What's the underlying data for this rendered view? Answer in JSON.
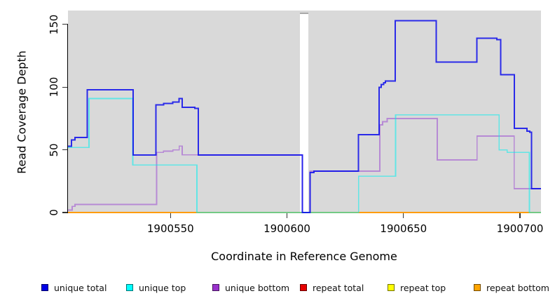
{
  "figure": {
    "x_axis_title": "Coordinate in Reference Genome",
    "y_axis_title": "Read Coverage Depth",
    "panel_background": "#d9d9d9"
  },
  "chart_data": {
    "type": "line",
    "step_style": "step-after",
    "title": "",
    "xlabel": "Coordinate in Reference Genome",
    "ylabel": "Read Coverage Depth",
    "xlim": [
      1900506,
      1900709
    ],
    "ylim": [
      0,
      161
    ],
    "x_ticks": [
      1900550,
      1900600,
      1900650,
      1900700
    ],
    "y_ticks": [
      0,
      50,
      100,
      150
    ],
    "grid": false,
    "legend_position": "bottom",
    "gap_region": {
      "x_start": 1900605.5,
      "x_end": 1900609.2,
      "note": "white vertical band, no data"
    },
    "series": [
      {
        "name": "repeat total",
        "line_color": "rgba(220,20,20,1)",
        "points": [
          [
            1900506,
            0
          ]
        ]
      },
      {
        "name": "repeat top",
        "line_color": "rgba(255,255,0,1)",
        "points": [
          [
            1900506,
            0
          ]
        ]
      },
      {
        "name": "repeat bottom",
        "line_color": "rgba(255,156,5,1)",
        "points": [
          [
            1900506,
            0
          ]
        ]
      },
      {
        "name": "unique bottom",
        "line_color": "rgba(150,60,210,0.5)",
        "points": [
          [
            1900506,
            2
          ],
          [
            1900507.8,
            5
          ],
          [
            1900509,
            6.5
          ],
          [
            1900544,
            48
          ],
          [
            1900547,
            49
          ],
          [
            1900551,
            50
          ],
          [
            1900553.7,
            53
          ],
          [
            1900555,
            46
          ],
          [
            1900606.6,
            0
          ],
          [
            1900609.9,
            33
          ],
          [
            1900639.8,
            70
          ],
          [
            1900641,
            72.5
          ],
          [
            1900643,
            75
          ],
          [
            1900664.5,
            42
          ],
          [
            1900681.5,
            61
          ],
          [
            1900697.5,
            19
          ]
        ]
      },
      {
        "name": "unique top",
        "line_color": "rgba(0,238,238,0.55)",
        "points": [
          [
            1900506,
            52
          ],
          [
            1900515,
            91
          ],
          [
            1900533.8,
            38
          ],
          [
            1900561.3,
            0
          ],
          [
            1900630.7,
            29
          ],
          [
            1900646.6,
            78
          ],
          [
            1900691,
            50
          ],
          [
            1900694.5,
            48
          ],
          [
            1900704,
            0
          ]
        ]
      },
      {
        "name": "unique total",
        "line_color": "rgba(10,10,235,0.85)",
        "points": [
          [
            1900506,
            53
          ],
          [
            1900507.5,
            58
          ],
          [
            1900509,
            60
          ],
          [
            1900514.3,
            98
          ],
          [
            1900534,
            46
          ],
          [
            1900543.7,
            86
          ],
          [
            1900547,
            87
          ],
          [
            1900551,
            88
          ],
          [
            1900553.7,
            91
          ],
          [
            1900555,
            84
          ],
          [
            1900560.5,
            83
          ],
          [
            1900562,
            46
          ],
          [
            1900606.6,
            0
          ],
          [
            1900609.9,
            32
          ],
          [
            1900611.5,
            33
          ],
          [
            1900630.7,
            62
          ],
          [
            1900639.5,
            100
          ],
          [
            1900640.5,
            102
          ],
          [
            1900641.5,
            103.5
          ],
          [
            1900642.2,
            105
          ],
          [
            1900646.5,
            153
          ],
          [
            1900664,
            120
          ],
          [
            1900681.5,
            139
          ],
          [
            1900690,
            138
          ],
          [
            1900691.7,
            110
          ],
          [
            1900697.5,
            67
          ],
          [
            1900703,
            65
          ],
          [
            1900704.2,
            64
          ],
          [
            1900705,
            19
          ]
        ]
      }
    ]
  },
  "legend": {
    "items": [
      {
        "label": "unique total",
        "color": "#0000e6"
      },
      {
        "label": "unique top",
        "color": "#00ffff"
      },
      {
        "label": "unique bottom",
        "color": "#9932cc"
      },
      {
        "label": "repeat total",
        "color": "#e60000"
      },
      {
        "label": "repeat top",
        "color": "#ffff00"
      },
      {
        "label": "repeat bottom",
        "color": "#ffa500"
      }
    ]
  }
}
